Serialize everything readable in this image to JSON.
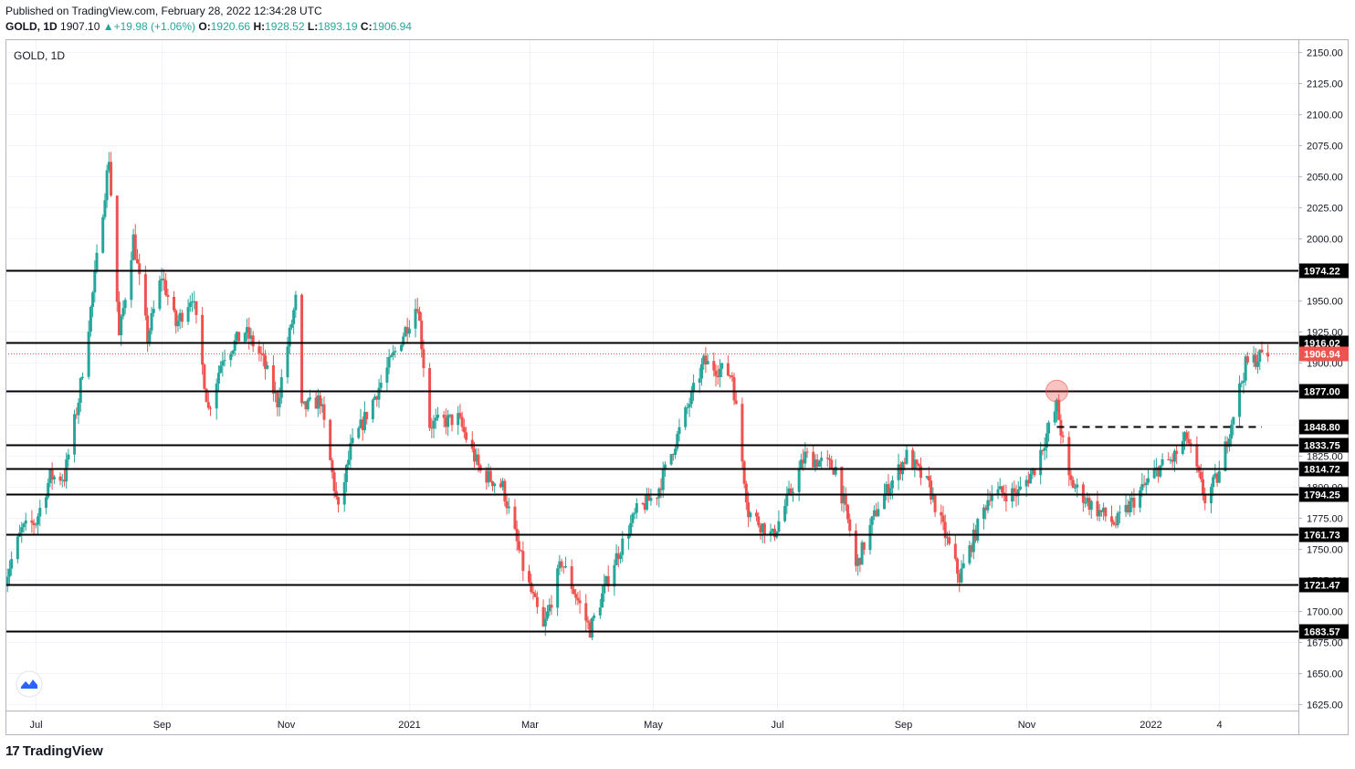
{
  "header": {
    "published": "Published on TradingView.com, February 28, 2022 12:34:28 UTC",
    "symbol": "GOLD, 1D",
    "last": "1907.10",
    "change": "▲+19.98 (+1.06%)",
    "o_label": "O:",
    "o_val": "1920.66",
    "h_label": "H:",
    "h_val": "1928.52",
    "l_label": "L:",
    "l_val": "1893.19",
    "c_label": "C:",
    "c_val": "1906.94"
  },
  "pane_label": "GOLD, 1D",
  "brand": {
    "logo": "17",
    "name": "TradingView",
    "icon": "tradingview-logo-icon"
  },
  "colors": {
    "up": "#26a69a",
    "down": "#ef5350",
    "grid": "#f0f3fa",
    "level": "#000000",
    "price_tag": "#ef5350"
  },
  "chart_data": {
    "type": "candlestick",
    "ylim": [
      1620,
      2160
    ],
    "grid": true,
    "y_ticks": [
      1625,
      1650,
      1675,
      1700,
      1725,
      1750,
      1775,
      1800,
      1825,
      1850,
      1875,
      1900,
      1925,
      1950,
      1975,
      2000,
      2025,
      2050,
      2075,
      2100,
      2125,
      2150
    ],
    "y_tick_labels": [
      "1625.00",
      "1650.00",
      "1675.00",
      "1700.00",
      "1725.00",
      "1750.00",
      "1775.00",
      "1800.00",
      "1825.00",
      "1850.00",
      "1875.00",
      "1900.00",
      "1925.00",
      "1950.00",
      "1975.00",
      "2000.00",
      "2025.00",
      "2050.00",
      "2075.00",
      "2100.00",
      "2125.00",
      "2150.00"
    ],
    "x_labels": [
      {
        "label": "Jul",
        "date": "2020-07-01"
      },
      {
        "label": "Sep",
        "date": "2020-09-01"
      },
      {
        "label": "Nov",
        "date": "2020-11-01"
      },
      {
        "label": "2021",
        "date": "2021-01-01"
      },
      {
        "label": "Mar",
        "date": "2021-03-01"
      },
      {
        "label": "May",
        "date": "2021-05-01"
      },
      {
        "label": "Jul",
        "date": "2021-07-01"
      },
      {
        "label": "Sep",
        "date": "2021-09-01"
      },
      {
        "label": "Nov",
        "date": "2021-11-01"
      },
      {
        "label": "2022",
        "date": "2022-01-01"
      },
      {
        "label": "4",
        "date": "2022-02-04"
      }
    ],
    "x_range": [
      "2020-06-16",
      "2022-03-15"
    ],
    "horizontal_levels": [
      {
        "value": 1974.22,
        "label": "1974.22"
      },
      {
        "value": 1916.02,
        "label": "1916.02"
      },
      {
        "value": 1877.0,
        "label": "1877.00"
      },
      {
        "value": 1833.75,
        "label": "1833.75"
      },
      {
        "value": 1814.72,
        "label": "1814.72"
      },
      {
        "value": 1794.25,
        "label": "1794.25"
      },
      {
        "value": 1761.73,
        "label": "1761.73"
      },
      {
        "value": 1721.47,
        "label": "1721.47"
      },
      {
        "value": 1683.57,
        "label": "1683.57"
      }
    ],
    "dashed_level": {
      "value": 1848.8,
      "label": "1848.80",
      "from": "2021-11-16",
      "to": "2022-02-25"
    },
    "current_price": {
      "value": 1906.94,
      "label": "1906.94"
    },
    "marker_circle": {
      "date": "2021-11-16",
      "value": 1877
    },
    "anchors": [
      [
        "2020-06-16",
        1727
      ],
      [
        "2020-06-24",
        1765
      ],
      [
        "2020-07-01",
        1772
      ],
      [
        "2020-07-08",
        1808
      ],
      [
        "2020-07-15",
        1808
      ],
      [
        "2020-07-22",
        1870
      ],
      [
        "2020-07-29",
        1955
      ],
      [
        "2020-08-06",
        2065
      ],
      [
        "2020-08-11",
        1920
      ],
      [
        "2020-08-18",
        2000
      ],
      [
        "2020-08-25",
        1920
      ],
      [
        "2020-09-01",
        1970
      ],
      [
        "2020-09-08",
        1930
      ],
      [
        "2020-09-16",
        1955
      ],
      [
        "2020-09-24",
        1862
      ],
      [
        "2020-10-01",
        1905
      ],
      [
        "2020-10-12",
        1925
      ],
      [
        "2020-10-20",
        1905
      ],
      [
        "2020-10-28",
        1868
      ],
      [
        "2020-11-06",
        1950
      ],
      [
        "2020-11-09",
        1862
      ],
      [
        "2020-11-18",
        1870
      ],
      [
        "2020-11-27",
        1780
      ],
      [
        "2020-12-03",
        1830
      ],
      [
        "2020-12-17",
        1880
      ],
      [
        "2021-01-05",
        1948
      ],
      [
        "2021-01-11",
        1850
      ],
      [
        "2021-01-25",
        1855
      ],
      [
        "2021-02-05",
        1812
      ],
      [
        "2021-02-16",
        1800
      ],
      [
        "2021-02-26",
        1735
      ],
      [
        "2021-03-08",
        1685
      ],
      [
        "2021-03-17",
        1740
      ],
      [
        "2021-03-31",
        1685
      ],
      [
        "2021-04-12",
        1740
      ],
      [
        "2021-04-23",
        1780
      ],
      [
        "2021-05-03",
        1795
      ],
      [
        "2021-05-14",
        1845
      ],
      [
        "2021-05-26",
        1900
      ],
      [
        "2021-06-09",
        1890
      ],
      [
        "2021-06-17",
        1780
      ],
      [
        "2021-06-29",
        1760
      ],
      [
        "2021-07-15",
        1825
      ],
      [
        "2021-07-30",
        1815
      ],
      [
        "2021-08-06",
        1765
      ],
      [
        "2021-08-09",
        1735
      ],
      [
        "2021-08-20",
        1785
      ],
      [
        "2021-09-03",
        1825
      ],
      [
        "2021-09-14",
        1800
      ],
      [
        "2021-09-29",
        1727
      ],
      [
        "2021-10-14",
        1795
      ],
      [
        "2021-10-28",
        1795
      ],
      [
        "2021-11-05",
        1815
      ],
      [
        "2021-11-16",
        1865
      ],
      [
        "2021-11-22",
        1805
      ],
      [
        "2021-12-03",
        1785
      ],
      [
        "2021-12-15",
        1770
      ],
      [
        "2022-01-05",
        1815
      ],
      [
        "2022-01-12",
        1822
      ],
      [
        "2022-01-19",
        1840
      ],
      [
        "2022-01-28",
        1790
      ],
      [
        "2022-02-04",
        1810
      ],
      [
        "2022-02-11",
        1860
      ],
      [
        "2022-02-17",
        1898
      ],
      [
        "2022-02-24",
        1905
      ],
      [
        "2022-02-28",
        1907
      ]
    ]
  }
}
